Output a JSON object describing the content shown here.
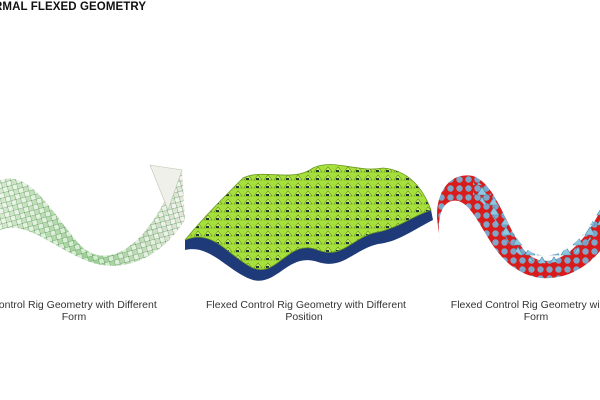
{
  "title": "RMAL FLEXED GEOMETRY",
  "panels": [
    {
      "caption_line1": "Control Rig Geometry with Different",
      "caption_line2": "Form",
      "color_main": "#a8d8a0",
      "color_accent": "#e8e8e0"
    },
    {
      "caption_line1": "Flexed Control Rig Geometry with Different",
      "caption_line2": "Position",
      "color_main": "#a6e03c",
      "color_accent": "#1e3a78"
    },
    {
      "caption_line1": "Flexed Control Rig Geometry with Di",
      "caption_line2": "Form",
      "color_main": "#8ec8e0",
      "color_accent": "#e02020"
    }
  ]
}
